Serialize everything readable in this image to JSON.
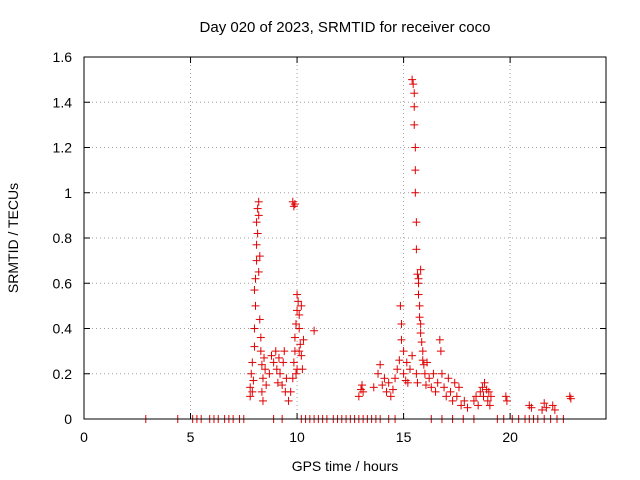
{
  "chart_data": {
    "type": "scatter",
    "title": "Day 020 of 2023, SRMTID for receiver coco",
    "xlabel": "GPS time / hours",
    "ylabel": "SRMTID / TECUs",
    "xlim": [
      0,
      24.5
    ],
    "ylim": [
      0,
      1.6
    ],
    "x_ticks": [
      0,
      5,
      10,
      15,
      20
    ],
    "x_tick_labels": [
      "0",
      "5",
      "10",
      "15",
      "20"
    ],
    "y_ticks": [
      0,
      0.2,
      0.4,
      0.6,
      0.8,
      1.0,
      1.2,
      1.4,
      1.6
    ],
    "y_tick_labels": [
      "0",
      "0.2",
      "0.4",
      "0.6",
      "0.8",
      "1",
      "1.2",
      "1.4",
      "1.6"
    ],
    "grid": true,
    "marker": "+",
    "color": "#e00000",
    "series": [
      {
        "name": "SRMTID",
        "points": [
          [
            2.9,
            0
          ],
          [
            4.4,
            0
          ],
          [
            5.1,
            0
          ],
          [
            5.3,
            0
          ],
          [
            5.5,
            0
          ],
          [
            5.9,
            0
          ],
          [
            6.1,
            0
          ],
          [
            6.3,
            0
          ],
          [
            6.6,
            0
          ],
          [
            6.8,
            0
          ],
          [
            7.0,
            0
          ],
          [
            7.3,
            0
          ],
          [
            7.5,
            0
          ],
          [
            8.9,
            0
          ],
          [
            9.3,
            0
          ],
          [
            10.2,
            0
          ],
          [
            10.4,
            0
          ],
          [
            10.6,
            0
          ],
          [
            10.8,
            0
          ],
          [
            11.0,
            0
          ],
          [
            11.2,
            0
          ],
          [
            11.4,
            0
          ],
          [
            11.7,
            0
          ],
          [
            11.9,
            0
          ],
          [
            12.1,
            0
          ],
          [
            12.3,
            0
          ],
          [
            12.5,
            0
          ],
          [
            12.7,
            0
          ],
          [
            12.9,
            0
          ],
          [
            13.1,
            0
          ],
          [
            13.3,
            0
          ],
          [
            13.5,
            0
          ],
          [
            13.7,
            0
          ],
          [
            13.9,
            0
          ],
          [
            14.3,
            0
          ],
          [
            14.6,
            0
          ],
          [
            16.3,
            0
          ],
          [
            16.8,
            0
          ],
          [
            17.3,
            0
          ],
          [
            17.8,
            0
          ],
          [
            18.3,
            0
          ],
          [
            19.4,
            0
          ],
          [
            19.7,
            0
          ],
          [
            20.1,
            0
          ],
          [
            20.4,
            0
          ],
          [
            20.7,
            0
          ],
          [
            20.9,
            0
          ],
          [
            21.1,
            0
          ],
          [
            21.3,
            0
          ],
          [
            21.6,
            0
          ],
          [
            21.9,
            0
          ],
          [
            22.2,
            0
          ],
          [
            22.5,
            0
          ],
          [
            7.8,
            0.1
          ],
          [
            7.8,
            0.14
          ],
          [
            7.85,
            0.2
          ],
          [
            7.9,
            0.25
          ],
          [
            7.95,
            0.17
          ],
          [
            7.9,
            0.12
          ],
          [
            8.0,
            0.32
          ],
          [
            8.0,
            0.4
          ],
          [
            8.05,
            0.5
          ],
          [
            8.0,
            0.57
          ],
          [
            8.05,
            0.62
          ],
          [
            8.1,
            0.7
          ],
          [
            8.1,
            0.77
          ],
          [
            8.15,
            0.82
          ],
          [
            8.1,
            0.87
          ],
          [
            8.2,
            0.9
          ],
          [
            8.15,
            0.93
          ],
          [
            8.2,
            0.96
          ],
          [
            8.25,
            0.72
          ],
          [
            8.2,
            0.65
          ],
          [
            8.25,
            0.44
          ],
          [
            8.3,
            0.36
          ],
          [
            8.3,
            0.3
          ],
          [
            8.35,
            0.24
          ],
          [
            8.4,
            0.18
          ],
          [
            8.35,
            0.12
          ],
          [
            8.4,
            0.08
          ],
          [
            8.45,
            0.27
          ],
          [
            8.5,
            0.22
          ],
          [
            8.55,
            0.15
          ],
          [
            8.7,
            0.2
          ],
          [
            8.8,
            0.28
          ],
          [
            8.9,
            0.25
          ],
          [
            9.0,
            0.3
          ],
          [
            9.05,
            0.22
          ],
          [
            9.1,
            0.16
          ],
          [
            9.15,
            0.27
          ],
          [
            9.2,
            0.2
          ],
          [
            9.3,
            0.15
          ],
          [
            9.35,
            0.25
          ],
          [
            9.4,
            0.3
          ],
          [
            9.45,
            0.12
          ],
          [
            9.5,
            0.18
          ],
          [
            9.6,
            0.08
          ],
          [
            9.7,
            0.12
          ],
          [
            9.8,
            0.96
          ],
          [
            9.85,
            0.94
          ],
          [
            9.9,
            0.95
          ],
          [
            9.8,
            0.18
          ],
          [
            9.85,
            0.25
          ],
          [
            9.9,
            0.3
          ],
          [
            9.9,
            0.36
          ],
          [
            9.95,
            0.42
          ],
          [
            10.0,
            0.48
          ],
          [
            10.0,
            0.55
          ],
          [
            10.05,
            0.52
          ],
          [
            10.1,
            0.46
          ],
          [
            10.1,
            0.4
          ],
          [
            10.15,
            0.33
          ],
          [
            10.2,
            0.28
          ],
          [
            10.25,
            0.22
          ],
          [
            10.3,
            0.35
          ],
          [
            10.2,
            0.5
          ],
          [
            10.1,
            0.3
          ],
          [
            10.0,
            0.22
          ],
          [
            9.95,
            0.2
          ],
          [
            10.8,
            0.39
          ],
          [
            12.9,
            0.1
          ],
          [
            13.0,
            0.13
          ],
          [
            13.1,
            0.12
          ],
          [
            13.05,
            0.15
          ],
          [
            13.6,
            0.14
          ],
          [
            13.8,
            0.2
          ],
          [
            13.9,
            0.24
          ],
          [
            14.0,
            0.15
          ],
          [
            14.1,
            0.18
          ],
          [
            14.2,
            0.12
          ],
          [
            14.3,
            0.16
          ],
          [
            14.4,
            0.1
          ],
          [
            14.5,
            0.13
          ],
          [
            14.6,
            0.18
          ],
          [
            14.7,
            0.22
          ],
          [
            14.8,
            0.26
          ],
          [
            14.85,
            0.5
          ],
          [
            14.9,
            0.42
          ],
          [
            14.9,
            0.35
          ],
          [
            15.0,
            0.3
          ],
          [
            15.0,
            0.2
          ],
          [
            15.1,
            0.17
          ],
          [
            15.15,
            0.25
          ],
          [
            15.2,
            0.16
          ],
          [
            15.3,
            0.22
          ],
          [
            15.4,
            0.28
          ],
          [
            15.4,
            1.5
          ],
          [
            15.45,
            1.48
          ],
          [
            15.5,
            1.44
          ],
          [
            15.5,
            1.38
          ],
          [
            15.5,
            1.3
          ],
          [
            15.55,
            1.2
          ],
          [
            15.55,
            1.1
          ],
          [
            15.55,
            1.0
          ],
          [
            15.6,
            0.87
          ],
          [
            15.6,
            0.75
          ],
          [
            15.65,
            0.64
          ],
          [
            15.7,
            0.6
          ],
          [
            15.7,
            0.55
          ],
          [
            15.75,
            0.5
          ],
          [
            15.75,
            0.45
          ],
          [
            15.8,
            0.42
          ],
          [
            15.8,
            0.38
          ],
          [
            15.85,
            0.34
          ],
          [
            15.9,
            0.3
          ],
          [
            15.9,
            0.26
          ],
          [
            15.95,
            0.24
          ],
          [
            15.8,
            0.66
          ],
          [
            15.7,
            0.62
          ],
          [
            15.6,
            0.2
          ],
          [
            15.65,
            0.16
          ],
          [
            16.0,
            0.2
          ],
          [
            16.05,
            0.15
          ],
          [
            16.1,
            0.25
          ],
          [
            16.2,
            0.18
          ],
          [
            16.3,
            0.14
          ],
          [
            16.4,
            0.2
          ],
          [
            16.5,
            0.12
          ],
          [
            16.6,
            0.16
          ],
          [
            16.7,
            0.35
          ],
          [
            16.75,
            0.3
          ],
          [
            16.8,
            0.2
          ],
          [
            16.9,
            0.14
          ],
          [
            17.0,
            0.1
          ],
          [
            17.1,
            0.18
          ],
          [
            17.2,
            0.12
          ],
          [
            17.3,
            0.08
          ],
          [
            17.4,
            0.16
          ],
          [
            17.5,
            0.1
          ],
          [
            17.6,
            0.14
          ],
          [
            17.7,
            0.06
          ],
          [
            17.85,
            0.08
          ],
          [
            18.0,
            0.05
          ],
          [
            18.3,
            0.08
          ],
          [
            18.4,
            0.1
          ],
          [
            18.5,
            0.06
          ],
          [
            18.6,
            0.12
          ],
          [
            18.7,
            0.14
          ],
          [
            18.75,
            0.1
          ],
          [
            18.8,
            0.16
          ],
          [
            18.9,
            0.13
          ],
          [
            18.95,
            0.08
          ],
          [
            19.0,
            0.12
          ],
          [
            19.05,
            0.06
          ],
          [
            19.1,
            0.1
          ],
          [
            19.8,
            0.1
          ],
          [
            19.85,
            0.08
          ],
          [
            20.9,
            0.06
          ],
          [
            21.0,
            0.05
          ],
          [
            21.5,
            0.04
          ],
          [
            21.6,
            0.07
          ],
          [
            21.7,
            0.05
          ],
          [
            22.0,
            0.06
          ],
          [
            22.1,
            0.04
          ],
          [
            22.8,
            0.1
          ],
          [
            22.85,
            0.09
          ]
        ]
      }
    ]
  }
}
